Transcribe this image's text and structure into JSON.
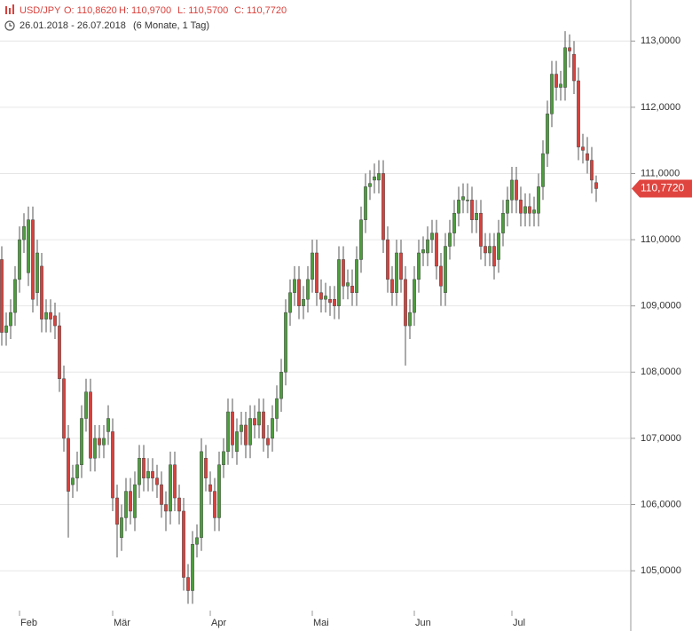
{
  "chart_data": {
    "type": "candlestick",
    "symbol": "USD/JPY",
    "ohlc_labels": [
      "O: 110,8620",
      "H: 110,9700",
      "L: 110,5700",
      "C: 110,7720"
    ],
    "date_range": "26.01.2018 - 26.07.2018",
    "period": "(6 Monate, 1 Tag)",
    "last_price_label": "110,7720",
    "up_color": "#4c9e3c",
    "down_color": "#d9413c",
    "grid": true,
    "ylim": [
      104.09,
      113.62
    ],
    "yticks": [
      {
        "value": 105,
        "label": "105,0000"
      },
      {
        "value": 106,
        "label": "106,0000"
      },
      {
        "value": 107,
        "label": "107,0000"
      },
      {
        "value": 108,
        "label": "108,0000"
      },
      {
        "value": 109,
        "label": "109,0000"
      },
      {
        "value": 110,
        "label": "110,0000"
      },
      {
        "value": 111,
        "label": "111,0000"
      },
      {
        "value": 112,
        "label": "112,0000"
      },
      {
        "value": 113,
        "label": "113,0000"
      }
    ],
    "categories": [
      null,
      null,
      null,
      null,
      "Feb",
      null,
      null,
      null,
      null,
      null,
      null,
      null,
      null,
      null,
      null,
      null,
      null,
      null,
      null,
      null,
      null,
      null,
      null,
      null,
      null,
      "Mär",
      null,
      null,
      null,
      null,
      null,
      null,
      null,
      null,
      null,
      null,
      null,
      null,
      null,
      null,
      null,
      null,
      null,
      null,
      null,
      null,
      null,
      "Apr",
      null,
      null,
      null,
      null,
      null,
      null,
      null,
      null,
      null,
      null,
      null,
      null,
      null,
      null,
      null,
      null,
      null,
      null,
      null,
      null,
      null,
      null,
      "Mai",
      null,
      null,
      null,
      null,
      null,
      null,
      null,
      null,
      null,
      null,
      null,
      null,
      null,
      null,
      null,
      null,
      null,
      null,
      null,
      null,
      null,
      null,
      "Jun",
      null,
      null,
      null,
      null,
      null,
      null,
      null,
      null,
      null,
      null,
      null,
      null,
      null,
      null,
      null,
      null,
      null,
      null,
      null,
      null,
      null,
      "Jul",
      null,
      null,
      null,
      null,
      null,
      null,
      null,
      null,
      null,
      null,
      null,
      null,
      null,
      null,
      null,
      null,
      null,
      null,
      null
    ],
    "open": [
      109.7,
      108.6,
      108.7,
      108.9,
      109.4,
      110.0,
      109.5,
      110.3,
      109.2,
      109.6,
      108.8,
      108.9,
      108.85,
      108.7,
      107.9,
      107.0,
      106.3,
      106.4,
      106.6,
      107.3,
      107.7,
      106.7,
      107.0,
      106.9,
      107.1,
      107.1,
      106.1,
      105.5,
      105.8,
      106.2,
      105.8,
      106.3,
      106.7,
      106.4,
      106.5,
      106.4,
      106.3,
      106.0,
      105.9,
      106.6,
      106.1,
      105.9,
      104.9,
      104.7,
      105.4,
      105.5,
      106.7,
      106.3,
      106.2,
      105.8,
      106.6,
      106.8,
      107.4,
      106.8,
      107.1,
      107.2,
      106.9,
      107.3,
      107.2,
      107.4,
      107.0,
      107.0,
      107.3,
      107.6,
      108.0,
      108.9,
      109.2,
      109.4,
      109.0,
      109.1,
      109.4,
      109.8,
      109.2,
      109.1,
      109.1,
      109.1,
      109.0,
      109.7,
      109.3,
      109.3,
      109.2,
      109.7,
      110.3,
      110.8,
      110.9,
      110.9,
      111.0,
      110.0,
      109.4,
      109.2,
      109.8,
      109.4,
      108.7,
      108.9,
      109.4,
      109.8,
      109.8,
      110.0,
      110.1,
      109.6,
      109.2,
      109.9,
      110.1,
      110.4,
      110.6,
      110.6,
      110.6,
      110.3,
      110.4,
      109.9,
      109.8,
      109.9,
      109.7,
      110.1,
      110.4,
      110.6,
      110.9,
      110.6,
      110.4,
      110.5,
      110.4,
      110.4,
      110.8,
      111.3,
      111.9,
      112.5,
      112.3,
      112.3,
      112.9,
      112.8,
      112.4,
      111.4,
      111.3,
      111.2,
      110.862
    ],
    "high": [
      109.9,
      108.9,
      109.1,
      109.6,
      110.2,
      110.4,
      110.5,
      110.5,
      110.0,
      109.8,
      109.1,
      109.1,
      109.05,
      108.9,
      108.1,
      107.2,
      106.6,
      106.8,
      107.5,
      107.9,
      107.9,
      107.2,
      107.2,
      107.2,
      107.5,
      107.3,
      106.3,
      106.0,
      106.4,
      106.4,
      106.5,
      106.9,
      106.9,
      106.7,
      106.7,
      106.6,
      106.5,
      106.2,
      106.8,
      106.8,
      106.3,
      106.1,
      105.1,
      105.6,
      105.7,
      107.0,
      106.9,
      106.5,
      106.4,
      106.8,
      107.0,
      107.6,
      107.6,
      107.3,
      107.4,
      107.4,
      107.5,
      107.5,
      107.6,
      107.6,
      107.2,
      107.5,
      107.8,
      108.2,
      109.1,
      109.4,
      109.6,
      109.6,
      109.3,
      109.6,
      110.0,
      110.0,
      109.4,
      109.35,
      109.3,
      109.3,
      109.9,
      109.9,
      109.55,
      109.55,
      109.9,
      110.5,
      111.0,
      111.05,
      111.15,
      111.2,
      111.2,
      110.2,
      109.6,
      110.0,
      110.0,
      109.6,
      109.1,
      109.6,
      110.0,
      110.05,
      110.2,
      110.3,
      110.3,
      109.8,
      110.1,
      110.3,
      110.6,
      110.8,
      110.85,
      110.85,
      110.8,
      110.6,
      110.6,
      110.1,
      110.1,
      110.1,
      110.3,
      110.6,
      110.8,
      111.1,
      111.1,
      110.8,
      110.7,
      110.7,
      110.65,
      111.0,
      111.5,
      112.1,
      112.7,
      112.7,
      112.55,
      113.15,
      113.1,
      113.0,
      112.6,
      111.6,
      111.55,
      111.4,
      110.97
    ],
    "low": [
      108.4,
      108.4,
      108.5,
      108.7,
      109.2,
      109.8,
      109.3,
      108.9,
      109.0,
      108.6,
      108.6,
      108.6,
      108.5,
      107.7,
      106.8,
      105.5,
      106.1,
      106.2,
      106.4,
      107.1,
      106.5,
      106.5,
      106.7,
      106.7,
      106.9,
      105.9,
      105.2,
      105.3,
      105.6,
      105.7,
      105.6,
      106.1,
      106.2,
      106.2,
      106.2,
      106.1,
      105.8,
      105.6,
      105.7,
      105.9,
      105.7,
      104.7,
      104.5,
      104.5,
      105.2,
      105.3,
      106.2,
      106.0,
      105.6,
      105.6,
      106.4,
      106.6,
      106.7,
      106.6,
      106.9,
      106.7,
      106.7,
      107.0,
      107.0,
      106.8,
      106.7,
      106.8,
      107.1,
      107.4,
      107.8,
      108.7,
      109.0,
      108.8,
      108.8,
      108.9,
      109.2,
      109.0,
      108.9,
      108.9,
      108.85,
      108.8,
      108.8,
      109.1,
      109.1,
      109.0,
      109.0,
      109.5,
      110.1,
      110.6,
      110.7,
      110.7,
      109.8,
      109.2,
      109.0,
      109.0,
      109.2,
      108.1,
      108.5,
      108.7,
      109.2,
      109.6,
      109.6,
      109.8,
      109.4,
      109.0,
      109.0,
      109.7,
      109.9,
      110.2,
      110.4,
      110.4,
      110.1,
      110.1,
      109.7,
      109.6,
      109.6,
      109.4,
      109.5,
      109.9,
      110.2,
      110.4,
      110.4,
      110.2,
      110.2,
      110.2,
      110.2,
      110.2,
      110.6,
      111.1,
      111.7,
      112.1,
      112.1,
      112.1,
      112.6,
      112.2,
      111.2,
      111.15,
      111.0,
      110.7,
      110.57
    ],
    "close": [
      108.6,
      108.7,
      108.9,
      109.4,
      110.0,
      110.2,
      110.3,
      109.1,
      109.8,
      108.8,
      108.9,
      108.8,
      108.7,
      107.9,
      107.0,
      106.2,
      106.4,
      106.6,
      107.3,
      107.7,
      106.7,
      107.0,
      106.9,
      107.0,
      107.3,
      106.1,
      105.7,
      105.8,
      106.2,
      105.9,
      106.3,
      106.7,
      106.4,
      106.5,
      106.4,
      106.3,
      106.0,
      105.9,
      106.6,
      106.1,
      105.9,
      104.9,
      104.7,
      105.4,
      105.5,
      106.8,
      106.4,
      106.2,
      105.8,
      106.6,
      106.8,
      107.4,
      106.9,
      107.1,
      107.2,
      106.9,
      107.3,
      107.2,
      107.4,
      107.0,
      106.9,
      107.3,
      107.6,
      108.0,
      108.9,
      109.2,
      109.4,
      109.0,
      109.1,
      109.4,
      109.8,
      109.2,
      109.1,
      109.15,
      109.05,
      109.0,
      109.7,
      109.3,
      109.35,
      109.2,
      109.7,
      110.3,
      110.8,
      110.85,
      110.95,
      111.0,
      110.0,
      109.4,
      109.2,
      109.8,
      109.4,
      108.7,
      108.9,
      109.4,
      109.8,
      109.85,
      110.0,
      110.1,
      109.6,
      109.3,
      109.9,
      110.1,
      110.4,
      110.6,
      110.65,
      110.6,
      110.3,
      110.4,
      109.9,
      109.8,
      109.9,
      109.6,
      110.1,
      110.4,
      110.6,
      110.9,
      110.6,
      110.4,
      110.5,
      110.4,
      110.45,
      110.8,
      111.3,
      111.9,
      112.5,
      112.3,
      112.35,
      112.9,
      112.85,
      112.4,
      111.4,
      111.35,
      111.2,
      110.9,
      110.772
    ]
  }
}
